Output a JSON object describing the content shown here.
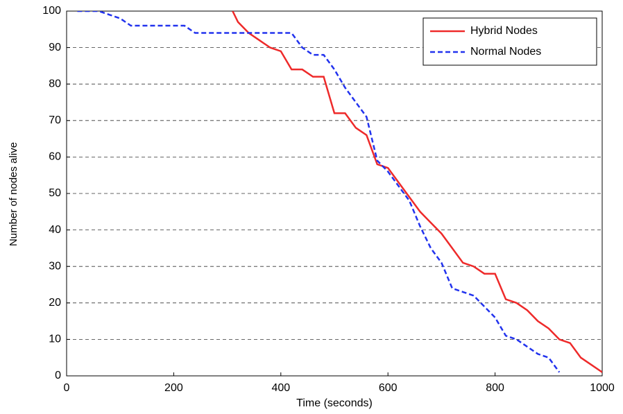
{
  "chart_data": {
    "type": "line",
    "x_label": "Time (seconds)",
    "y_label": "Number of nodes alive",
    "xlim": [
      0,
      1000
    ],
    "ylim": [
      0,
      100
    ],
    "xticks": [
      0,
      200,
      400,
      600,
      800,
      1000
    ],
    "yticks": [
      0,
      10,
      20,
      30,
      40,
      50,
      60,
      70,
      80,
      90,
      100
    ],
    "grid": "y",
    "legend": "top-right",
    "series": [
      {
        "name": "Hybrid Nodes",
        "color": "#ee2a2a",
        "dash": "solid",
        "x": [
          310,
          320,
          340,
          360,
          380,
          400,
          420,
          440,
          460,
          480,
          500,
          520,
          540,
          560,
          580,
          600,
          620,
          640,
          660,
          680,
          700,
          720,
          740,
          760,
          780,
          800,
          820,
          840,
          860,
          880,
          900,
          920,
          940,
          960,
          980,
          1000
        ],
        "values": [
          100,
          97,
          94,
          92,
          90,
          89,
          84,
          84,
          82,
          82,
          72,
          72,
          68,
          66,
          58,
          57,
          53,
          49,
          45,
          42,
          39,
          35,
          31,
          30,
          28,
          28,
          21,
          20,
          18,
          15,
          13,
          10,
          9,
          5,
          3,
          1
        ]
      },
      {
        "name": "Normal Nodes",
        "color": "#2233ee",
        "dash": "dashed",
        "x": [
          20,
          60,
          80,
          100,
          120,
          220,
          240,
          420,
          440,
          460,
          480,
          500,
          520,
          540,
          560,
          580,
          600,
          620,
          640,
          660,
          680,
          700,
          720,
          740,
          760,
          780,
          800,
          820,
          840,
          860,
          880,
          900,
          920
        ],
        "values": [
          100,
          100,
          99,
          98,
          96,
          96,
          94,
          94,
          90,
          88,
          88,
          84,
          79,
          75,
          71,
          59,
          56,
          52,
          48,
          41,
          35,
          31,
          24,
          23,
          22,
          19,
          16,
          11,
          10,
          8,
          6,
          5,
          1
        ]
      }
    ]
  }
}
